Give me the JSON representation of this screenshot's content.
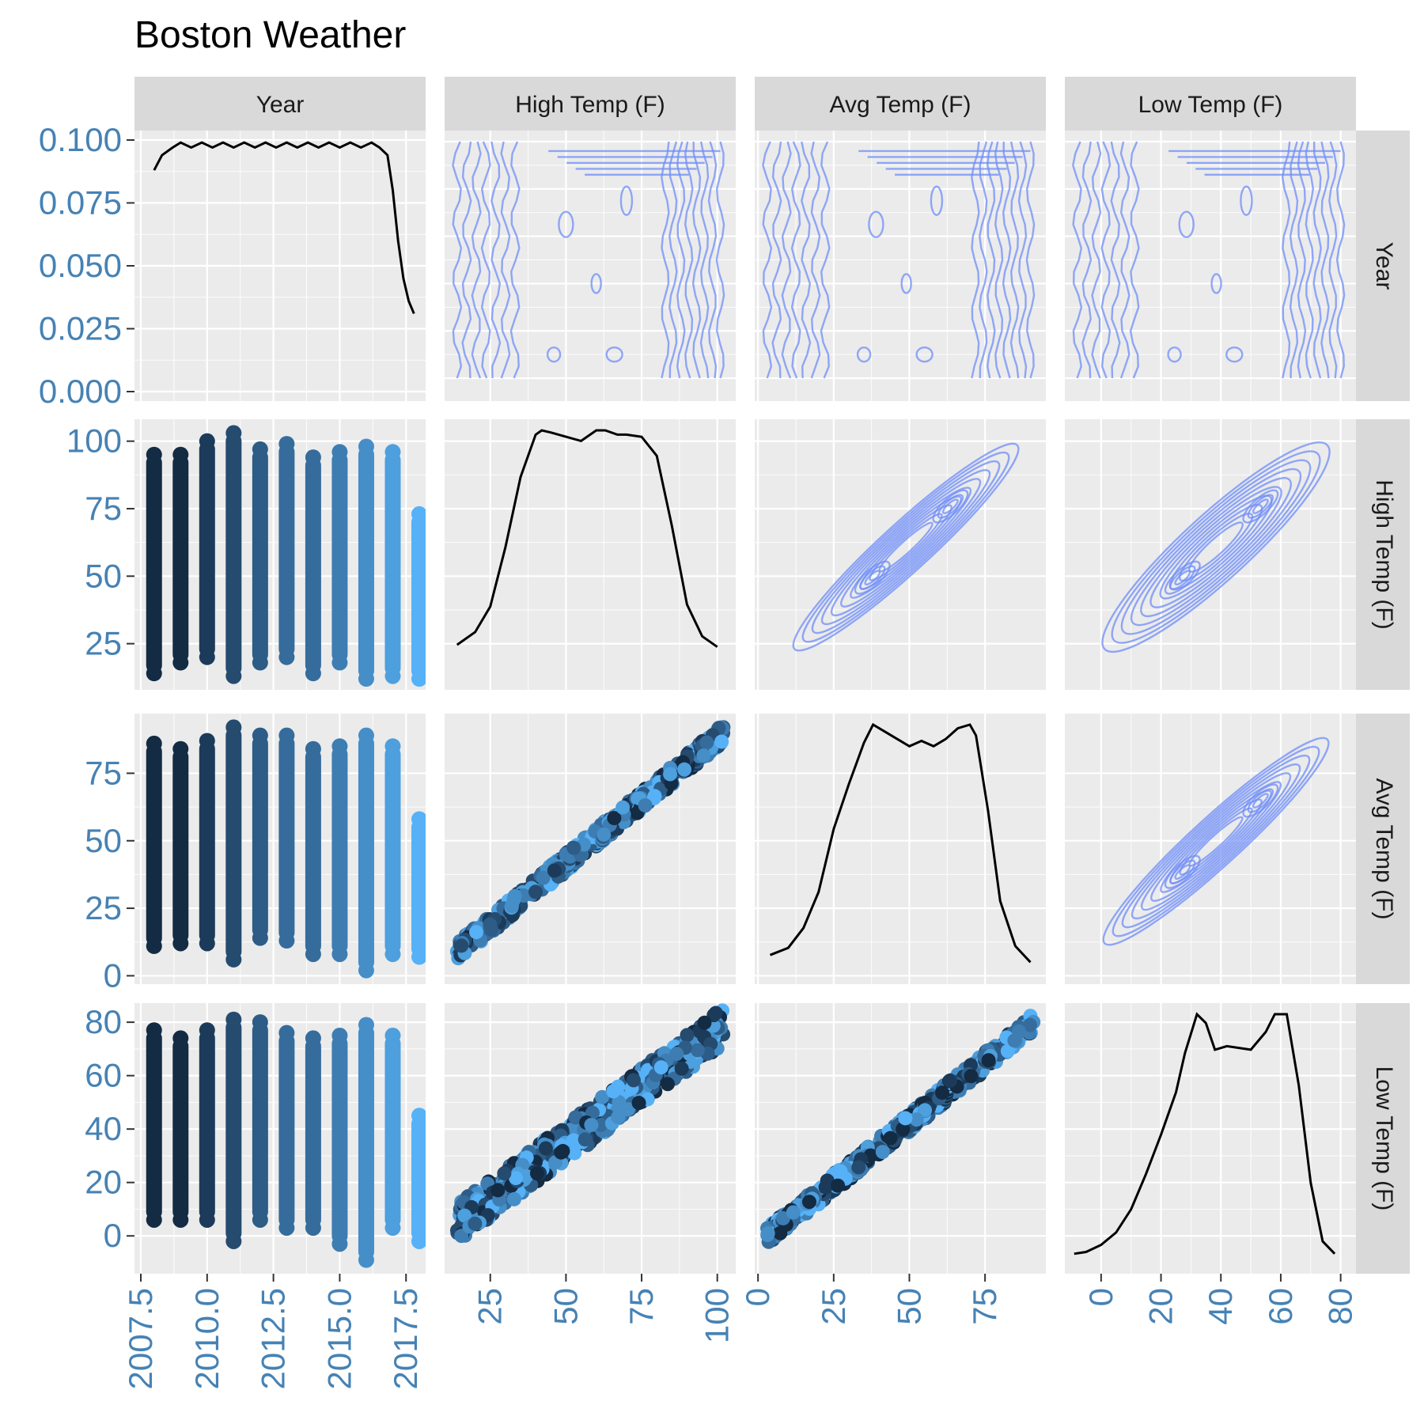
{
  "title": "Boston Weather",
  "variables": [
    "Year",
    "High Temp (F)",
    "Avg Temp (F)",
    "Low Temp (F)"
  ],
  "colors": {
    "density_line": "#000000",
    "contour": "#6f8df8",
    "tick_label": "#4682b4",
    "year_palette": [
      "#132b43",
      "#1c3b5a",
      "#254b6f",
      "#2d5c86",
      "#356c9c",
      "#3d7db2",
      "#458ec8",
      "#4d9fdd",
      "#56b1f7"
    ]
  },
  "chart_data": {
    "type": "scatter",
    "title": "Boston Weather",
    "layout": "pairs-matrix",
    "diagonal": "density",
    "upper": "density-contours",
    "lower": "scatter",
    "axes": {
      "Year": {
        "x_range": [
          2007.5,
          2018.0
        ],
        "x_ticks": [
          "2007.5",
          "2010.0",
          "2012.5",
          "2015.0",
          "2017.5"
        ],
        "x_tick_values": [
          2007.5,
          2010.0,
          2012.5,
          2015.0,
          2017.5
        ],
        "density_y_range": [
          0,
          0.1
        ],
        "density_y_ticks": [
          "0.000",
          "0.025",
          "0.050",
          "0.075",
          "0.100"
        ],
        "density_y_tick_values": [
          0,
          0.025,
          0.05,
          0.075,
          0.1
        ]
      },
      "High Temp (F)": {
        "range": [
          12,
          104
        ],
        "ticks": [
          "25",
          "50",
          "75",
          "100"
        ],
        "tick_values": [
          25,
          50,
          75,
          100
        ]
      },
      "Avg Temp (F)": {
        "range": [
          1,
          93
        ],
        "ticks": [
          "0",
          "25",
          "50",
          "75"
        ],
        "tick_values": [
          0,
          25,
          50,
          75
        ]
      },
      "Low Temp (F)": {
        "range": [
          -10,
          83
        ],
        "ticks": [
          "0",
          "20",
          "40",
          "60",
          "80"
        ],
        "tick_values": [
          0,
          20,
          40,
          60,
          80
        ]
      }
    },
    "densities": {
      "Year": {
        "x": [
          2008,
          2008.3,
          2008.7,
          2009,
          2009.4,
          2009.8,
          2010.2,
          2010.6,
          2011,
          2011.4,
          2011.8,
          2012.2,
          2012.6,
          2013,
          2013.4,
          2013.8,
          2014.2,
          2014.6,
          2015,
          2015.4,
          2015.8,
          2016.2,
          2016.5,
          2016.8,
          2017,
          2017.2,
          2017.4,
          2017.6,
          2017.8
        ],
        "y": [
          0.088,
          0.094,
          0.097,
          0.099,
          0.097,
          0.099,
          0.097,
          0.099,
          0.097,
          0.099,
          0.097,
          0.099,
          0.097,
          0.099,
          0.097,
          0.099,
          0.097,
          0.099,
          0.097,
          0.099,
          0.097,
          0.099,
          0.097,
          0.094,
          0.08,
          0.06,
          0.045,
          0.036,
          0.031
        ]
      },
      "High Temp (F)": {
        "x": [
          14,
          20,
          25,
          30,
          35,
          40,
          42,
          45,
          50,
          55,
          60,
          63,
          67,
          70,
          75,
          80,
          85,
          90,
          95,
          100
        ],
        "y": [
          0.016,
          0.022,
          0.034,
          0.062,
          0.095,
          0.115,
          0.117,
          0.116,
          0.114,
          0.112,
          0.117,
          0.117,
          0.115,
          0.115,
          0.114,
          0.105,
          0.072,
          0.035,
          0.02,
          0.015
        ]
      },
      "Avg Temp (F)": {
        "x": [
          4,
          10,
          15,
          20,
          25,
          30,
          35,
          38,
          42,
          46,
          50,
          54,
          58,
          62,
          66,
          70,
          72,
          76,
          80,
          85,
          90
        ],
        "y": [
          0.01,
          0.014,
          0.025,
          0.045,
          0.08,
          0.105,
          0.128,
          0.138,
          0.134,
          0.13,
          0.126,
          0.129,
          0.126,
          0.13,
          0.136,
          0.138,
          0.132,
          0.09,
          0.04,
          0.015,
          0.006
        ]
      },
      "Low Temp (F)": {
        "x": [
          -9,
          -5,
          0,
          5,
          10,
          15,
          20,
          25,
          28,
          32,
          35,
          38,
          42,
          46,
          50,
          55,
          58,
          62,
          66,
          70,
          74,
          78
        ],
        "y": [
          0.005,
          0.006,
          0.01,
          0.017,
          0.03,
          0.05,
          0.072,
          0.096,
          0.118,
          0.14,
          0.135,
          0.12,
          0.122,
          0.121,
          0.12,
          0.13,
          0.14,
          0.14,
          0.1,
          0.045,
          0.012,
          0.005
        ]
      }
    },
    "scatter_summary": {
      "year_columns": [
        2008,
        2009,
        2010,
        2011,
        2012,
        2013,
        2014,
        2015,
        2016,
        2017,
        2018
      ],
      "High Temp (F)": {
        "min": [
          14,
          18,
          20,
          13,
          18,
          20,
          14,
          18,
          12,
          13,
          12
        ],
        "max": [
          95,
          95,
          100,
          103,
          97,
          99,
          94,
          96,
          98,
          96,
          73
        ]
      },
      "Avg Temp (F)": {
        "min": [
          11,
          12,
          12,
          6,
          14,
          13,
          8,
          8,
          2,
          8,
          7
        ],
        "max": [
          86,
          84,
          87,
          92,
          89,
          89,
          84,
          85,
          89,
          85,
          58
        ]
      },
      "Low Temp (F)": {
        "min": [
          6,
          6,
          6,
          -2,
          6,
          3,
          3,
          -3,
          -9,
          3,
          -2
        ],
        "max": [
          77,
          74,
          77,
          81,
          80,
          76,
          74,
          75,
          79,
          75,
          45
        ]
      },
      "pairwise_fits": {
        "Avg vs High": {
          "slope": 0.92,
          "intercept": -4
        },
        "Low vs High": {
          "slope": 0.84,
          "intercept": -7
        },
        "Low vs Avg": {
          "slope": 0.91,
          "intercept": -3
        }
      }
    }
  }
}
